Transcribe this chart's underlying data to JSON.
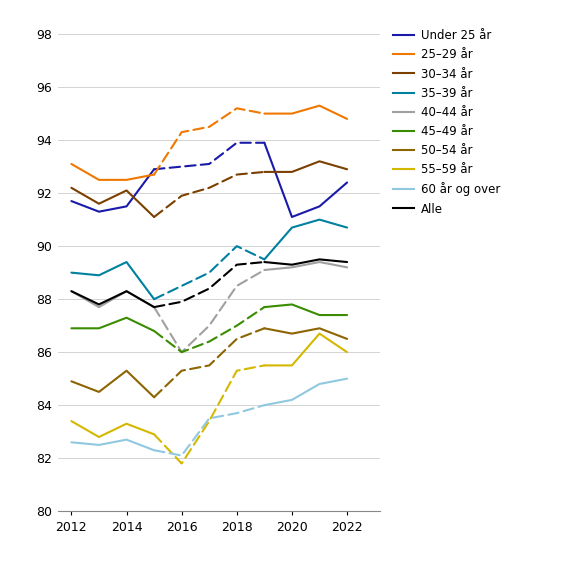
{
  "ylim": [
    80,
    98
  ],
  "yticks": [
    80,
    82,
    84,
    86,
    88,
    90,
    92,
    94,
    96,
    98
  ],
  "xlim": [
    2011.5,
    2023.2
  ],
  "xticks": [
    2012,
    2014,
    2016,
    2018,
    2020,
    2022
  ],
  "series": [
    {
      "label": "Under 25 år",
      "color": "#1a1aaa",
      "solid_years": [
        2012,
        2013,
        2014,
        2015
      ],
      "solid_values": [
        91.7,
        91.3,
        91.5,
        92.9
      ],
      "dash_years": [
        2015,
        2016,
        2017,
        2018,
        2019
      ],
      "dash_values": [
        92.9,
        93.0,
        93.1,
        93.9,
        93.9
      ],
      "solid2_years": [
        2019,
        2020,
        2021,
        2022
      ],
      "solid2_values": [
        93.9,
        91.1,
        91.5,
        92.4
      ]
    },
    {
      "label": "25–29 år",
      "color": "#f07800",
      "solid_years": [
        2012,
        2013,
        2014,
        2015
      ],
      "solid_values": [
        93.1,
        92.5,
        92.5,
        92.7
      ],
      "dash_years": [
        2015,
        2016,
        2017,
        2018,
        2019
      ],
      "dash_values": [
        92.7,
        94.3,
        94.5,
        95.2,
        95.0
      ],
      "solid2_years": [
        2019,
        2020,
        2021,
        2022
      ],
      "solid2_values": [
        95.0,
        95.0,
        95.3,
        94.8
      ]
    },
    {
      "label": "30–34 år",
      "color": "#7b3f00",
      "solid_years": [
        2012,
        2013,
        2014,
        2015
      ],
      "solid_values": [
        92.2,
        91.6,
        92.1,
        91.1
      ],
      "dash_years": [
        2015,
        2016,
        2017,
        2018,
        2019
      ],
      "dash_values": [
        91.1,
        91.9,
        92.2,
        92.7,
        92.8
      ],
      "solid2_years": [
        2019,
        2020,
        2021,
        2022
      ],
      "solid2_values": [
        92.8,
        92.8,
        93.2,
        92.9
      ]
    },
    {
      "label": "35–39 år",
      "color": "#0080a0",
      "solid_years": [
        2012,
        2013,
        2014,
        2015
      ],
      "solid_values": [
        89.0,
        88.9,
        89.4,
        88.0
      ],
      "dash_years": [
        2015,
        2016,
        2017,
        2018,
        2019
      ],
      "dash_values": [
        88.0,
        88.5,
        89.0,
        90.0,
        89.5
      ],
      "solid2_years": [
        2019,
        2020,
        2021,
        2022
      ],
      "solid2_values": [
        89.5,
        90.7,
        91.0,
        90.7
      ]
    },
    {
      "label": "40–44 år",
      "color": "#a0a0a0",
      "solid_years": [
        2012,
        2013,
        2014,
        2015
      ],
      "solid_values": [
        88.3,
        87.7,
        88.3,
        87.7
      ],
      "dash_years": [
        2015,
        2016,
        2017,
        2018,
        2019
      ],
      "dash_values": [
        87.7,
        86.0,
        87.0,
        88.5,
        89.1
      ],
      "solid2_years": [
        2019,
        2020,
        2021,
        2022
      ],
      "solid2_values": [
        89.1,
        89.2,
        89.4,
        89.2
      ]
    },
    {
      "label": "45–49 år",
      "color": "#3a8c00",
      "solid_years": [
        2012,
        2013,
        2014,
        2015
      ],
      "solid_values": [
        86.9,
        86.9,
        87.3,
        86.8
      ],
      "dash_years": [
        2015,
        2016,
        2017,
        2018,
        2019
      ],
      "dash_values": [
        86.8,
        86.0,
        86.4,
        87.0,
        87.7
      ],
      "solid2_years": [
        2019,
        2020,
        2021,
        2022
      ],
      "solid2_values": [
        87.7,
        87.8,
        87.4,
        87.4
      ]
    },
    {
      "label": "50–54 år",
      "color": "#8c6400",
      "solid_years": [
        2012,
        2013,
        2014,
        2015
      ],
      "solid_values": [
        84.9,
        84.5,
        85.3,
        84.3
      ],
      "dash_years": [
        2015,
        2016,
        2017,
        2018,
        2019
      ],
      "dash_values": [
        84.3,
        85.3,
        85.5,
        86.5,
        86.9
      ],
      "solid2_years": [
        2019,
        2020,
        2021,
        2022
      ],
      "solid2_values": [
        86.9,
        86.7,
        86.9,
        86.5
      ]
    },
    {
      "label": "55–59 år",
      "color": "#d4b800",
      "solid_years": [
        2012,
        2013,
        2014,
        2015
      ],
      "solid_values": [
        83.4,
        82.8,
        83.3,
        82.9
      ],
      "dash_years": [
        2015,
        2016,
        2017,
        2018,
        2019
      ],
      "dash_values": [
        82.9,
        81.8,
        83.4,
        85.3,
        85.5
      ],
      "solid2_years": [
        2019,
        2020,
        2021,
        2022
      ],
      "solid2_values": [
        85.5,
        85.5,
        86.7,
        86.0
      ]
    },
    {
      "label": "60 år og over",
      "color": "#90c8e0",
      "solid_years": [
        2012,
        2013,
        2014,
        2015
      ],
      "solid_values": [
        82.6,
        82.5,
        82.7,
        82.3
      ],
      "dash_years": [
        2015,
        2016,
        2017,
        2018,
        2019
      ],
      "dash_values": [
        82.3,
        82.1,
        83.5,
        83.7,
        84.0
      ],
      "solid2_years": [
        2019,
        2020,
        2021,
        2022
      ],
      "solid2_values": [
        84.0,
        84.2,
        84.8,
        85.0
      ]
    },
    {
      "label": "Alle",
      "color": "#000000",
      "solid_years": [
        2012,
        2013,
        2014,
        2015
      ],
      "solid_values": [
        88.3,
        87.8,
        88.3,
        87.7
      ],
      "dash_years": [
        2015,
        2016,
        2017,
        2018,
        2019
      ],
      "dash_values": [
        87.7,
        87.9,
        88.4,
        89.3,
        89.4
      ],
      "solid2_years": [
        2019,
        2020,
        2021,
        2022
      ],
      "solid2_values": [
        89.4,
        89.3,
        89.5,
        89.4
      ]
    }
  ],
  "figsize": [
    5.76,
    5.68
  ],
  "dpi": 100
}
